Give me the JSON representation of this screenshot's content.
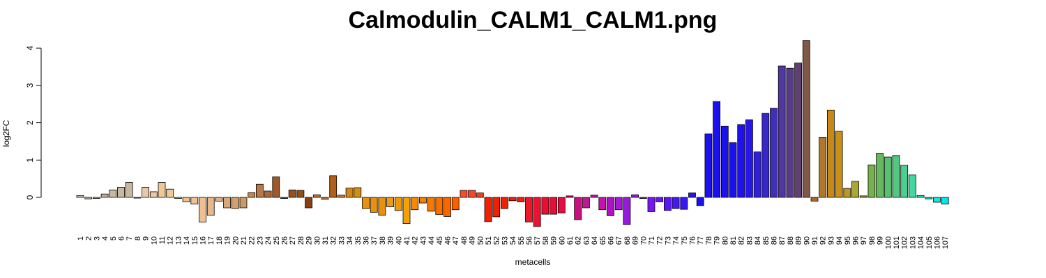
{
  "chart_data": {
    "type": "bar",
    "title": "Calmodulin_CALM1_CALM1.png",
    "xlabel": "metacells",
    "ylabel": "log2FC",
    "ylim": [
      -0.8,
      4.2
    ],
    "yticks": [
      0,
      1,
      2,
      3,
      4
    ],
    "grid": false,
    "legend": "none",
    "categories": [
      "1",
      "2",
      "3",
      "4",
      "5",
      "6",
      "7",
      "8",
      "9",
      "10",
      "11",
      "12",
      "13",
      "14",
      "15",
      "16",
      "17",
      "18",
      "19",
      "20",
      "21",
      "22",
      "23",
      "24",
      "25",
      "26",
      "27",
      "28",
      "29",
      "30",
      "31",
      "32",
      "33",
      "34",
      "35",
      "36",
      "37",
      "38",
      "39",
      "40",
      "41",
      "42",
      "43",
      "44",
      "45",
      "46",
      "47",
      "48",
      "49",
      "50",
      "51",
      "52",
      "53",
      "54",
      "55",
      "56",
      "57",
      "58",
      "59",
      "60",
      "61",
      "62",
      "63",
      "64",
      "65",
      "66",
      "67",
      "68",
      "69",
      "70",
      "71",
      "72",
      "73",
      "74",
      "75",
      "76",
      "77",
      "78",
      "79",
      "80",
      "81",
      "82",
      "83",
      "84",
      "85",
      "86",
      "87",
      "88",
      "89",
      "90",
      "91",
      "92",
      "93",
      "94",
      "95",
      "96",
      "97",
      "98",
      "99",
      "100",
      "101",
      "102",
      "103",
      "104",
      "105",
      "106",
      "107"
    ],
    "values": [
      0.05,
      -0.04,
      -0.03,
      0.09,
      0.2,
      0.27,
      0.4,
      -0.02,
      0.27,
      0.15,
      0.4,
      0.22,
      -0.03,
      -0.12,
      -0.18,
      -0.66,
      -0.48,
      -0.1,
      -0.28,
      -0.3,
      -0.28,
      0.13,
      0.35,
      0.17,
      0.55,
      -0.03,
      0.2,
      0.19,
      -0.28,
      0.07,
      -0.05,
      0.58,
      0.06,
      0.25,
      0.26,
      -0.3,
      -0.4,
      -0.48,
      -0.25,
      -0.35,
      -0.7,
      -0.33,
      -0.15,
      -0.37,
      -0.46,
      -0.51,
      -0.33,
      0.19,
      0.19,
      0.12,
      -0.65,
      -0.52,
      -0.3,
      -0.09,
      -0.12,
      -0.66,
      -0.78,
      -0.45,
      -0.45,
      -0.42,
      0.04,
      -0.6,
      -0.28,
      0.06,
      -0.33,
      -0.49,
      -0.33,
      -0.73,
      0.07,
      -0.03,
      -0.38,
      -0.12,
      -0.35,
      -0.3,
      -0.32,
      0.12,
      -0.22,
      1.7,
      2.57,
      1.91,
      1.47,
      1.95,
      2.08,
      1.22,
      2.25,
      2.39,
      3.52,
      3.46,
      3.6,
      4.2,
      -0.1,
      1.61,
      2.34,
      1.77,
      0.24,
      0.43,
      0.04,
      0.87,
      1.18,
      1.08,
      1.12,
      0.86,
      0.6,
      0.05,
      -0.04,
      -0.13,
      -0.18
    ],
    "colors": [
      "#c8bcb0",
      "#c8bcb0",
      "#c8bcb0",
      "#c4ae98",
      "#c8b8a0",
      "#c8b8a0",
      "#c8b8a0",
      "#c8b8a0",
      "#e8c8a8",
      "#e8c8a8",
      "#f0c898",
      "#f0c898",
      "#f0c090",
      "#f0c090",
      "#f0c090",
      "#f0c090",
      "#e8b888",
      "#e0b080",
      "#d8a878",
      "#d0a070",
      "#c89868",
      "#c08850",
      "#b87848",
      "#a86838",
      "#a05828",
      "#985020",
      "#985020",
      "#905018",
      "#884010",
      "#c07030",
      "#c07030",
      "#b06018",
      "#c87828",
      "#d08818",
      "#d09018",
      "#e89010",
      "#e89010",
      "#e89010",
      "#f09810",
      "#f09808",
      "#f8a000",
      "#f88800",
      "#f88000",
      "#f87800",
      "#f87000",
      "#f86800",
      "#f86000",
      "#f05030",
      "#f04828",
      "#f04020",
      "#f02000",
      "#f02000",
      "#f02000",
      "#f02010",
      "#f02010",
      "#f01828",
      "#f01030",
      "#e81030",
      "#e01038",
      "#e01040",
      "#d81050",
      "#c81080",
      "#c01890",
      "#c81090",
      "#c810b0",
      "#b010c8",
      "#a818d8",
      "#9818e0",
      "#8818e8",
      "#7818f0",
      "#7818f0",
      "#6818f0",
      "#5818f0",
      "#4818f0",
      "#3818f0",
      "#2810f0",
      "#1a10f0",
      "#1a10f0",
      "#1a10f0",
      "#1a10f0",
      "#1a10f0",
      "#2010f0",
      "#2818e8",
      "#3020d8",
      "#3828c8",
      "#4030b8",
      "#5038a0",
      "#583c88",
      "#604070",
      "#805848",
      "#a86830",
      "#b07828",
      "#c88818",
      "#c89018",
      "#b89828",
      "#a8a838",
      "#98a848",
      "#78b050",
      "#68b860",
      "#58c070",
      "#50c880",
      "#48d090",
      "#40d8a0",
      "#30e0b0",
      "#20e8c8",
      "#10e8d8",
      "#00e8e8"
    ]
  }
}
